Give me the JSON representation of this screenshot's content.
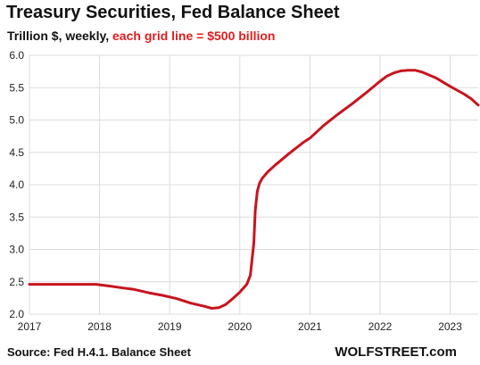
{
  "header": {
    "title": "Treasury Securities, Fed Balance Sheet",
    "subtitle_main": "Trillion $, weekly, ",
    "subtitle_highlight": "each grid line = $500 billion"
  },
  "footer": {
    "source": "Source: Fed H.4.1. Balance Sheet",
    "brand": "WOLFSTREET.com"
  },
  "colors": {
    "line": "#c8141e",
    "grid": "#dcdcdc",
    "highlight": "#e11d1d"
  },
  "chart_data": {
    "type": "line",
    "title": "Treasury Securities, Fed Balance Sheet",
    "xlabel": "",
    "ylabel": "",
    "ylim": [
      2.0,
      6.0
    ],
    "xlim": [
      2017.0,
      2023.4
    ],
    "yticks": [
      "2.0",
      "2.5",
      "3.0",
      "3.5",
      "4.0",
      "4.5",
      "5.0",
      "5.5",
      "6.0"
    ],
    "xticks": [
      "2017",
      "2018",
      "2019",
      "2020",
      "2021",
      "2022",
      "2023"
    ],
    "grid": true,
    "legend": "none",
    "series": [
      {
        "x": [
          2017.0,
          2017.4,
          2017.8,
          2017.95,
          2018.1,
          2018.3,
          2018.5,
          2018.7,
          2018.9,
          2019.1,
          2019.3,
          2019.5,
          2019.6,
          2019.7,
          2019.8,
          2019.9,
          2020.0,
          2020.1,
          2020.15,
          2020.2,
          2020.22,
          2020.25,
          2020.28,
          2020.32,
          2020.4,
          2020.5,
          2020.7,
          2020.9,
          2021.0,
          2021.2,
          2021.4,
          2021.6,
          2021.8,
          2022.0,
          2022.1,
          2022.2,
          2022.3,
          2022.4,
          2022.5,
          2022.6,
          2022.8,
          2023.0,
          2023.2,
          2023.3,
          2023.4
        ],
        "y": [
          2.46,
          2.46,
          2.46,
          2.46,
          2.44,
          2.41,
          2.38,
          2.33,
          2.29,
          2.24,
          2.17,
          2.12,
          2.09,
          2.1,
          2.15,
          2.24,
          2.34,
          2.46,
          2.6,
          3.1,
          3.6,
          3.9,
          4.02,
          4.1,
          4.2,
          4.3,
          4.48,
          4.65,
          4.72,
          4.92,
          5.09,
          5.25,
          5.42,
          5.6,
          5.68,
          5.73,
          5.76,
          5.77,
          5.77,
          5.74,
          5.65,
          5.52,
          5.4,
          5.33,
          5.23
        ]
      }
    ]
  }
}
